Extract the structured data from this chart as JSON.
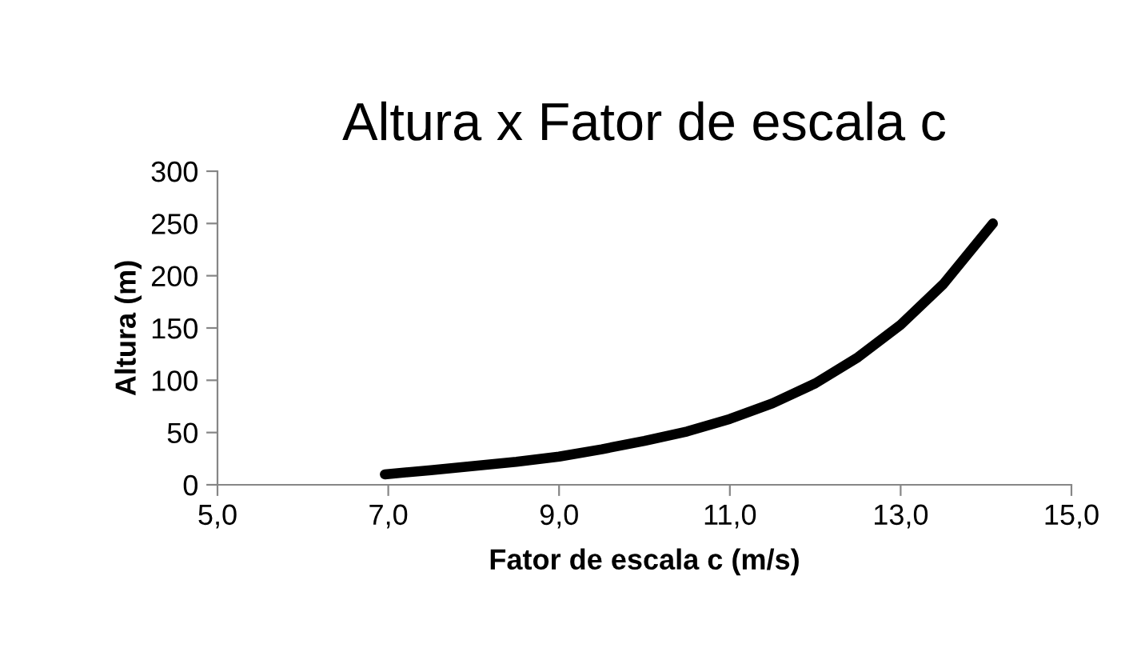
{
  "chart_data": {
    "type": "line",
    "title": "Altura x Fator de escala c",
    "xlabel": "Fator de escala c (m/s)",
    "ylabel": "Altura (m)",
    "x": [
      6.96,
      7.5,
      8,
      8.5,
      9,
      9.5,
      10,
      10.5,
      11,
      11.5,
      12,
      12.5,
      13,
      13.5,
      14.08
    ],
    "series": [
      {
        "color": "#000000",
        "values": [
          10,
          14,
          18,
          22,
          27,
          34,
          42,
          51,
          63,
          78,
          97,
          122,
          153,
          192,
          250
        ]
      }
    ],
    "xlim": [
      5,
      15
    ],
    "xticks": [
      {
        "value": 5,
        "label": "5,0"
      },
      {
        "value": 7,
        "label": "7,0"
      },
      {
        "value": 9,
        "label": "9,0"
      },
      {
        "value": 11,
        "label": "11,0"
      },
      {
        "value": 13,
        "label": "13,0"
      },
      {
        "value": 15,
        "label": "15,0"
      }
    ],
    "ylim": [
      0,
      300
    ],
    "yticks": [
      0,
      50,
      100,
      150,
      200,
      250,
      300
    ],
    "grid": false,
    "legend": false,
    "marker": "none",
    "line_style": "solid"
  }
}
